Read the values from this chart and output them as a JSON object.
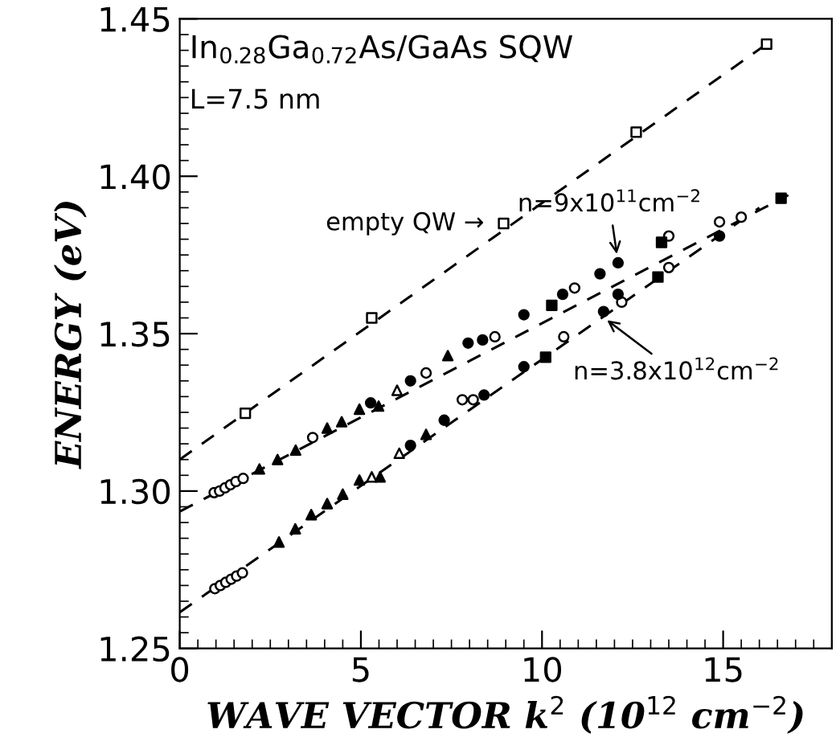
{
  "chart_data": {
    "type": "scatter",
    "xlabel": "WAVE VECTOR k$^{2}$ (10$^{12}$ cm$^{−2}$)",
    "ylabel": "ENERGY (eV)",
    "xlim": [
      0,
      18
    ],
    "ylim": [
      1.25,
      1.45
    ],
    "xticks": [
      0,
      5,
      10,
      15
    ],
    "yticks": [
      {
        "value": 1.25,
        "label": "1.25"
      },
      {
        "value": 1.3,
        "label": "1.30"
      },
      {
        "value": 1.35,
        "label": "1.35"
      },
      {
        "value": 1.4,
        "label": "1.40"
      },
      {
        "value": 1.45,
        "label": "1.45"
      }
    ],
    "grid": false,
    "legend": false,
    "annotations": [
      "In$_{0.28}$Ga$_{0.72}$As/GaAs SQW",
      "L=7.5 nm",
      {
        "text": "empty QW →",
        "x": 8.9,
        "y": 1.385
      },
      {
        "text": "n=9x10$^{11}$cm$^{−2}$",
        "x": 12.1,
        "y": 1.3725
      },
      {
        "text": "n=3.8x10$^{12}$cm$^{−2}$",
        "x": 11.6,
        "y": 1.356
      }
    ],
    "series": [
      {
        "type": "line",
        "line_style": "dashed",
        "marker": "none",
        "color": "#000000",
        "x": [
          0,
          16.2
        ],
        "values": [
          1.31,
          1.442
        ]
      },
      {
        "type": "line",
        "line_style": "dashed",
        "marker": "none",
        "color": "#000000",
        "x": [
          0,
          16.8
        ],
        "values": [
          1.2935,
          1.394
        ]
      },
      {
        "type": "line",
        "line_style": "dashed",
        "marker": "none",
        "color": "#000000",
        "x": [
          0,
          16.0
        ],
        "values": [
          1.2615,
          1.39
        ]
      },
      {
        "marker": "square",
        "color": "#ffffff",
        "x": [
          1.81,
          5.3,
          8.94,
          12.6,
          16.2
        ],
        "values": [
          1.3247,
          1.355,
          1.385,
          1.414,
          1.442
        ]
      },
      {
        "marker": "circle",
        "color": "#ffffff",
        "x": [
          0.95,
          1.1,
          1.25,
          1.4,
          1.55,
          1.75,
          3.67,
          6.8,
          8.7,
          10.9,
          13.5,
          14.9,
          0.97,
          1.12,
          1.27,
          1.42,
          1.57,
          1.73,
          7.8,
          8.1,
          10.6,
          12.2,
          13.5,
          15.5
        ],
        "values": [
          1.2995,
          1.3,
          1.301,
          1.302,
          1.303,
          1.304,
          1.317,
          1.3375,
          1.349,
          1.3645,
          1.381,
          1.3855,
          1.269,
          1.27,
          1.271,
          1.272,
          1.273,
          1.274,
          1.329,
          1.329,
          1.349,
          1.36,
          1.371,
          1.387
        ]
      },
      {
        "marker": "circle",
        "color": "#000000",
        "x": [
          5.27,
          6.37,
          7.96,
          8.36,
          9.5,
          10.57,
          11.6,
          12.1,
          6.37,
          7.3,
          8.4,
          9.5,
          11.7,
          12.1,
          14.9
        ],
        "values": [
          1.328,
          1.335,
          1.347,
          1.348,
          1.356,
          1.3625,
          1.369,
          1.3725,
          1.3145,
          1.3225,
          1.3305,
          1.3395,
          1.357,
          1.3625,
          1.381
        ]
      },
      {
        "marker": "triangle",
        "color": "#000000",
        "x": [
          2.2,
          2.7,
          3.2,
          4.07,
          4.47,
          4.96,
          5.49,
          7.4,
          2.74,
          3.19,
          3.63,
          4.07,
          4.5,
          4.96,
          5.53,
          6.8
        ],
        "values": [
          1.307,
          1.31,
          1.313,
          1.32,
          1.322,
          1.326,
          1.327,
          1.343,
          1.2838,
          1.288,
          1.2925,
          1.296,
          1.299,
          1.3035,
          1.3045,
          1.318
        ]
      },
      {
        "marker": "triangle",
        "color": "#ffffff",
        "x": [
          6.0,
          5.3,
          6.06
        ],
        "values": [
          1.332,
          1.3045,
          1.312
        ]
      },
      {
        "marker": "square",
        "color": "#000000",
        "x": [
          10.27,
          13.3,
          16.6,
          10.1,
          13.2
        ],
        "values": [
          1.359,
          1.379,
          1.393,
          1.3425,
          1.368
        ]
      }
    ]
  }
}
